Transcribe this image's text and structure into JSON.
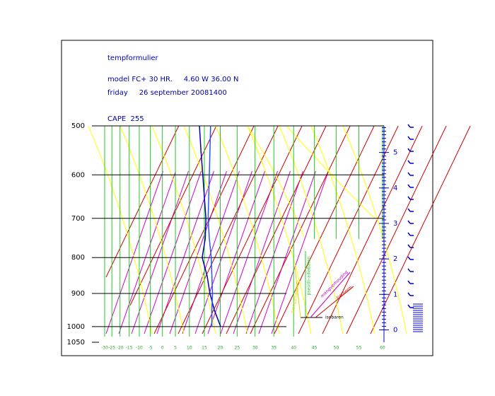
{
  "chart_data": {
    "type": "skew-t",
    "title": "tempformulier",
    "subtitle": "model FC+ 30 HR.     4.60 W 36.00 N",
    "date": "friday     26 september 20081400",
    "annotation": "CAPE  255",
    "ylim": [
      500,
      1050
    ],
    "yticks": [
      500,
      600,
      700,
      800,
      900,
      1000,
      1050
    ],
    "xlim": [
      -30,
      60
    ],
    "xticks": [
      -30,
      -25,
      -20,
      -15,
      -10,
      -5,
      0,
      5,
      10,
      15,
      20,
      25,
      30,
      35,
      40,
      45,
      50,
      55,
      60
    ],
    "y2lim": [
      -0.35,
      5.75
    ],
    "y2ticks": [
      0,
      1,
      2,
      3,
      4,
      5
    ],
    "pressure": [
      500,
      550,
      600,
      650,
      700,
      750,
      800,
      850,
      900,
      950,
      1000
    ],
    "series": [
      {
        "name": "profile-1",
        "color": "#0000aa",
        "values": [
          13.4,
          13.9,
          14.5,
          15.0,
          15.5,
          15.3,
          14.3,
          15.9,
          16.8,
          18.2,
          20.1
        ]
      },
      {
        "name": "profile-2",
        "color": "#2255ff",
        "values": [
          17.0,
          16.8,
          16.6,
          16.4,
          16.2,
          16.6,
          17.2,
          17.4,
          17.6,
          17.4,
          17.4
        ]
      }
    ],
    "legend": [
      "droogadiabaten",
      "pseudo-adiabaten",
      "mengverhouding",
      "isotherm",
      "isobaren"
    ]
  }
}
